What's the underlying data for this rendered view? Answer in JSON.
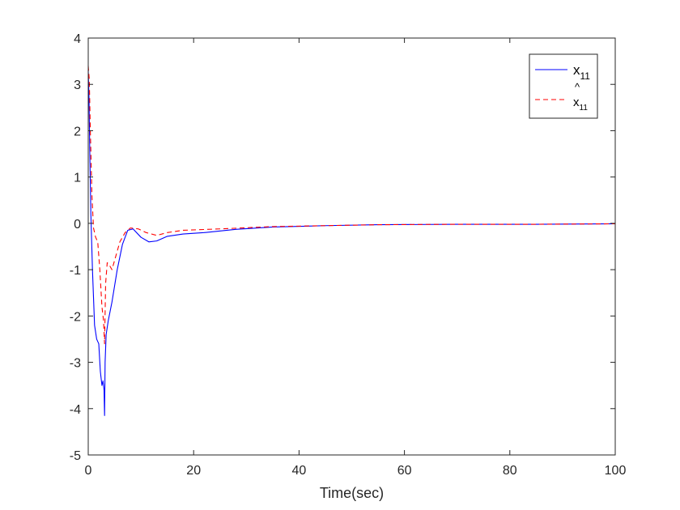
{
  "chart_data": {
    "type": "line",
    "title": "",
    "xlabel": "Time(sec)",
    "ylabel": "",
    "xlim": [
      0,
      100
    ],
    "ylim": [
      -5,
      4
    ],
    "x_ticks": [
      0,
      20,
      40,
      60,
      80,
      100
    ],
    "y_ticks": [
      4,
      3,
      2,
      1,
      0,
      -1,
      -2,
      -3,
      -4,
      -5
    ],
    "grid": false,
    "legend_position": "top-right",
    "legend": {
      "entries": [
        {
          "base": "x",
          "hat": "",
          "sub": "11"
        },
        {
          "base": "x",
          "hat": "^",
          "sub": "11"
        }
      ]
    },
    "colors": {
      "x11": "#0000ff",
      "x11_hat": "#ff0000"
    },
    "series": [
      {
        "name": "x11",
        "style": "solid",
        "points": [
          [
            0,
            3.3
          ],
          [
            0.15,
            2.7
          ],
          [
            0.3,
            1.5
          ],
          [
            0.5,
            0.2
          ],
          [
            0.8,
            -1.0
          ],
          [
            1.2,
            -2.2
          ],
          [
            1.6,
            -2.5
          ],
          [
            2.0,
            -2.6
          ],
          [
            2.3,
            -3.2
          ],
          [
            2.6,
            -3.5
          ],
          [
            2.8,
            -3.4
          ],
          [
            3.0,
            -3.6
          ],
          [
            3.1,
            -4.15
          ],
          [
            3.2,
            -3.0
          ],
          [
            3.4,
            -2.4
          ],
          [
            3.8,
            -2.1
          ],
          [
            4.5,
            -1.7
          ],
          [
            5.5,
            -1.0
          ],
          [
            6.5,
            -0.45
          ],
          [
            7.5,
            -0.15
          ],
          [
            8.5,
            -0.12
          ],
          [
            10,
            -0.3
          ],
          [
            11.5,
            -0.4
          ],
          [
            13,
            -0.38
          ],
          [
            15,
            -0.28
          ],
          [
            18,
            -0.23
          ],
          [
            22,
            -0.2
          ],
          [
            28,
            -0.13
          ],
          [
            35,
            -0.08
          ],
          [
            45,
            -0.05
          ],
          [
            55,
            -0.03
          ],
          [
            70,
            -0.02
          ],
          [
            85,
            -0.02
          ],
          [
            100,
            -0.01
          ]
        ]
      },
      {
        "name": "x11_hat",
        "style": "dashed",
        "points": [
          [
            0,
            3.4
          ],
          [
            0.2,
            3.1
          ],
          [
            0.4,
            2.0
          ],
          [
            0.7,
            0.6
          ],
          [
            1.0,
            -0.1
          ],
          [
            1.4,
            -0.3
          ],
          [
            1.8,
            -0.4
          ],
          [
            2.2,
            -1.0
          ],
          [
            2.6,
            -1.8
          ],
          [
            2.9,
            -2.1
          ],
          [
            3.1,
            -2.6
          ],
          [
            3.3,
            -1.3
          ],
          [
            3.6,
            -0.85
          ],
          [
            4.0,
            -0.9
          ],
          [
            4.5,
            -1.0
          ],
          [
            5.0,
            -0.8
          ],
          [
            6,
            -0.4
          ],
          [
            7,
            -0.2
          ],
          [
            8,
            -0.1
          ],
          [
            9.5,
            -0.12
          ],
          [
            11,
            -0.2
          ],
          [
            13,
            -0.26
          ],
          [
            15,
            -0.2
          ],
          [
            18,
            -0.15
          ],
          [
            25,
            -0.12
          ],
          [
            35,
            -0.07
          ],
          [
            45,
            -0.05
          ],
          [
            55,
            -0.03
          ],
          [
            70,
            -0.02
          ],
          [
            85,
            -0.02
          ],
          [
            100,
            -0.01
          ]
        ]
      }
    ]
  }
}
